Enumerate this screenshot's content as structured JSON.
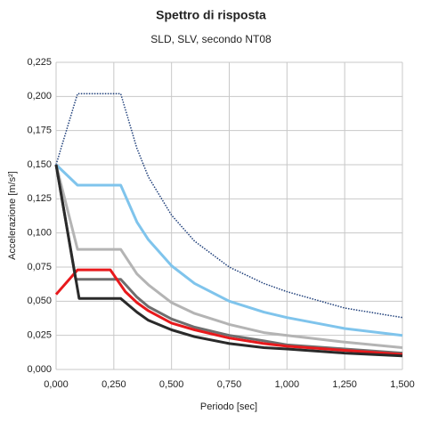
{
  "chart_data": {
    "type": "line",
    "title": "Spettro di risposta",
    "subtitle": "SLD, SLV, secondo NT08",
    "x_label": "Periodo [sec]",
    "y_label": "Accelerazione [m/s²]",
    "xlim": [
      0,
      1.5
    ],
    "ylim": [
      0,
      0.225
    ],
    "xticks": [
      {
        "value": 0,
        "label": "0,000"
      },
      {
        "value": 0.25,
        "label": "0,250"
      },
      {
        "value": 0.5,
        "label": "0,500"
      },
      {
        "value": 0.75,
        "label": "0,750"
      },
      {
        "value": 1,
        "label": "1,000"
      },
      {
        "value": 1.25,
        "label": "1,250"
      },
      {
        "value": 1.5,
        "label": "1,500"
      }
    ],
    "yticks": [
      {
        "value": 0,
        "label": "0,000"
      },
      {
        "value": 0.025,
        "label": "0,025"
      },
      {
        "value": 0.05,
        "label": "0,050"
      },
      {
        "value": 0.075,
        "label": "0,075"
      },
      {
        "value": 0.1,
        "label": "0,100"
      },
      {
        "value": 0.125,
        "label": "0,125"
      },
      {
        "value": 0.15,
        "label": "0,150"
      },
      {
        "value": 0.175,
        "label": "0,175"
      },
      {
        "value": 0.2,
        "label": "0,200"
      },
      {
        "value": 0.225,
        "label": "0,225"
      }
    ],
    "grid": true,
    "series": [
      {
        "color": "#1f3f7a",
        "style": "dotted",
        "x": [
          0,
          0.093,
          0.28,
          0.35,
          0.4,
          0.5,
          0.6,
          0.75,
          0.9,
          1.0,
          1.25,
          1.5
        ],
        "values": [
          0.15,
          0.202,
          0.202,
          0.162,
          0.141,
          0.113,
          0.094,
          0.075,
          0.063,
          0.057,
          0.045,
          0.038
        ]
      },
      {
        "color": "#7fc4ec",
        "style": "solid",
        "x": [
          0,
          0.093,
          0.28,
          0.35,
          0.4,
          0.5,
          0.6,
          0.75,
          0.9,
          1.0,
          1.25,
          1.5
        ],
        "values": [
          0.15,
          0.135,
          0.135,
          0.108,
          0.095,
          0.076,
          0.063,
          0.05,
          0.042,
          0.038,
          0.03,
          0.025
        ]
      },
      {
        "color": "#b4b4b4",
        "style": "solid",
        "x": [
          0,
          0.093,
          0.28,
          0.35,
          0.4,
          0.5,
          0.6,
          0.75,
          0.9,
          1.0,
          1.25,
          1.5
        ],
        "values": [
          0.15,
          0.088,
          0.088,
          0.07,
          0.062,
          0.049,
          0.041,
          0.033,
          0.027,
          0.025,
          0.02,
          0.016
        ]
      },
      {
        "color": "#6e6e6e",
        "style": "solid",
        "x": [
          0,
          0.085,
          0.28,
          0.35,
          0.4,
          0.5,
          0.6,
          0.75,
          0.9,
          1.0,
          1.25,
          1.5
        ],
        "values": [
          0.15,
          0.066,
          0.066,
          0.053,
          0.046,
          0.037,
          0.031,
          0.025,
          0.021,
          0.018,
          0.015,
          0.012
        ]
      },
      {
        "color": "#e8191c",
        "style": "solid",
        "x": [
          0,
          0.093,
          0.235,
          0.3,
          0.35,
          0.4,
          0.5,
          0.6,
          0.75,
          0.9,
          1.0,
          1.25,
          1.5
        ],
        "values": [
          0.055,
          0.073,
          0.073,
          0.057,
          0.049,
          0.043,
          0.034,
          0.029,
          0.023,
          0.019,
          0.017,
          0.014,
          0.011
        ]
      },
      {
        "color": "#2a2a2a",
        "style": "solid",
        "x": [
          0,
          0.1,
          0.28,
          0.35,
          0.4,
          0.5,
          0.6,
          0.75,
          0.9,
          1.0,
          1.25,
          1.5
        ],
        "values": [
          0.15,
          0.052,
          0.052,
          0.042,
          0.036,
          0.029,
          0.024,
          0.019,
          0.016,
          0.015,
          0.012,
          0.01
        ]
      }
    ]
  }
}
